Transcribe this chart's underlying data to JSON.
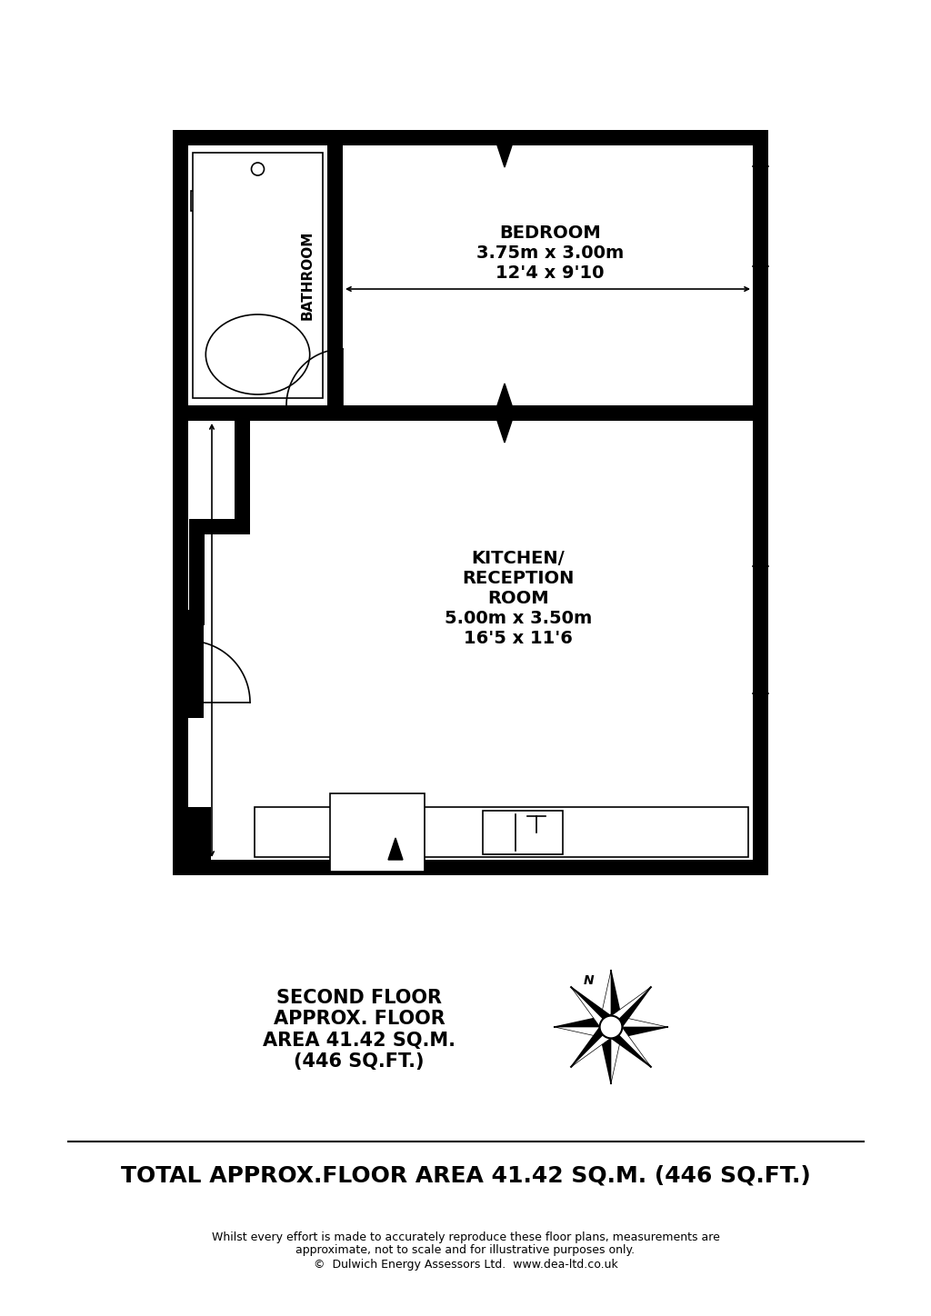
{
  "bg_color": "#ffffff",
  "wall_color": "#000000",
  "bedroom_label": "BEDROOM\n3.75m x 3.00m\n12'4 x 9'10",
  "kitchen_label": "KITCHEN/\nRECEPTION\nROOM\n5.00m x 3.50m\n16'5 x 11'6",
  "bathroom_label": "BATHROOM",
  "floor_label": "SECOND FLOOR\nAPPROX. FLOOR\nAREA 41.42 SQ.M.\n(446 SQ.FT.)",
  "title_total": "TOTAL APPROX.FLOOR AREA 41.42 SQ.M. (446 SQ.FT.)",
  "disclaimer_line1": "Whilst every effort is made to accurately reproduce these floor plans, measurements are",
  "disclaimer_line2": "approximate, not to scale and for illustrative purposes only.",
  "disclaimer_line3": "©  Dulwich Energy Assessors Ltd.  www.dea-ltd.co.uk"
}
